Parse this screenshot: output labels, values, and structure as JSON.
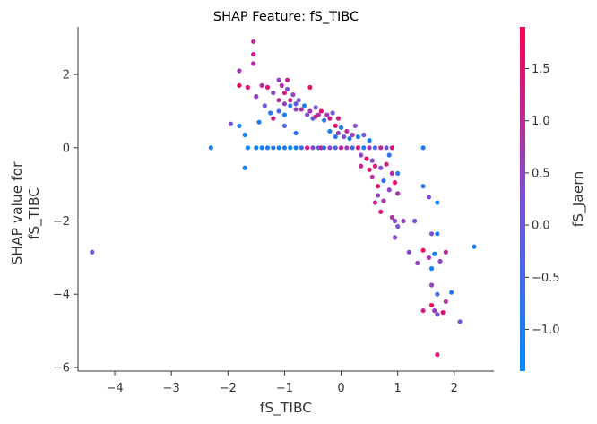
{
  "chart_data": {
    "type": "scatter",
    "title": "SHAP Feature: fS_TIBC",
    "xlabel": "fS_TIBC",
    "ylabel_lines": [
      "SHAP value for",
      "fS_TIBC"
    ],
    "xlim": [
      -4.65,
      2.7
    ],
    "ylim": [
      -6.1,
      3.3
    ],
    "xticks": [
      -4,
      -3,
      -2,
      -1,
      0,
      1,
      2
    ],
    "yticks": [
      -6,
      -4,
      -2,
      0,
      2
    ],
    "colorbar": {
      "label": "fS_Jaern",
      "range": [
        -1.4,
        1.9
      ],
      "ticks": [
        -1.0,
        -0.5,
        0.0,
        0.5,
        1.0,
        1.5
      ],
      "tick_labels": [
        "−1.0",
        "−0.5",
        "0.0",
        "0.5",
        "1.0",
        "1.5"
      ],
      "colors": [
        "#008bfb",
        "#7c4fd6",
        "#ff0052"
      ]
    },
    "points": [
      {
        "x": -4.4,
        "y": -2.85,
        "c": 0.1
      },
      {
        "x": -2.3,
        "y": 0.0,
        "c": -1.1
      },
      {
        "x": -1.95,
        "y": 0.65,
        "c": 0.2
      },
      {
        "x": -1.8,
        "y": 2.1,
        "c": 0.7
      },
      {
        "x": -1.8,
        "y": 1.7,
        "c": 1.6
      },
      {
        "x": -1.8,
        "y": 0.6,
        "c": -1.2
      },
      {
        "x": -1.7,
        "y": 0.35,
        "c": -1.3
      },
      {
        "x": -1.7,
        "y": -0.55,
        "c": -1.3
      },
      {
        "x": -1.65,
        "y": 1.65,
        "c": 1.5
      },
      {
        "x": -1.65,
        "y": 0.0,
        "c": -1.2
      },
      {
        "x": -1.55,
        "y": 2.9,
        "c": 1.0
      },
      {
        "x": -1.55,
        "y": 2.55,
        "c": 1.2
      },
      {
        "x": -1.55,
        "y": 2.3,
        "c": 0.8
      },
      {
        "x": -1.5,
        "y": 1.4,
        "c": 0.6
      },
      {
        "x": -1.5,
        "y": 0.0,
        "c": -1.1
      },
      {
        "x": -1.45,
        "y": 0.7,
        "c": -1.1
      },
      {
        "x": -1.4,
        "y": 1.7,
        "c": 0.9
      },
      {
        "x": -1.4,
        "y": 0.0,
        "c": -1.2
      },
      {
        "x": -1.35,
        "y": 1.15,
        "c": 0.0
      },
      {
        "x": -1.3,
        "y": 1.65,
        "c": 1.6
      },
      {
        "x": -1.3,
        "y": 0.0,
        "c": -0.9
      },
      {
        "x": -1.25,
        "y": 0.95,
        "c": -0.9
      },
      {
        "x": -1.2,
        "y": 1.5,
        "c": 0.4
      },
      {
        "x": -1.2,
        "y": 0.8,
        "c": 1.3
      },
      {
        "x": -1.2,
        "y": 0.0,
        "c": -0.8
      },
      {
        "x": -1.1,
        "y": 1.85,
        "c": 0.5
      },
      {
        "x": -1.1,
        "y": 1.3,
        "c": 1.1
      },
      {
        "x": -1.1,
        "y": 1.0,
        "c": -0.5
      },
      {
        "x": -1.1,
        "y": 0.0,
        "c": -1.2
      },
      {
        "x": -1.05,
        "y": 1.7,
        "c": 0.9
      },
      {
        "x": -1.0,
        "y": 1.5,
        "c": 1.3
      },
      {
        "x": -1.0,
        "y": 1.2,
        "c": 0.6
      },
      {
        "x": -1.0,
        "y": 0.9,
        "c": -1.2
      },
      {
        "x": -1.0,
        "y": 0.6,
        "c": -0.4
      },
      {
        "x": -1.0,
        "y": 0.0,
        "c": -1.0
      },
      {
        "x": -0.95,
        "y": 1.85,
        "c": 1.1
      },
      {
        "x": -0.95,
        "y": 1.6,
        "c": 0.3
      },
      {
        "x": -0.9,
        "y": 1.3,
        "c": 1.4
      },
      {
        "x": -0.9,
        "y": 1.15,
        "c": -1.0
      },
      {
        "x": -0.9,
        "y": 0.0,
        "c": -1.3
      },
      {
        "x": -0.85,
        "y": 1.45,
        "c": 0.5
      },
      {
        "x": -0.8,
        "y": 1.2,
        "c": 0.0
      },
      {
        "x": -0.8,
        "y": 1.05,
        "c": 0.6
      },
      {
        "x": -0.8,
        "y": 0.4,
        "c": -0.8
      },
      {
        "x": -0.8,
        "y": 0.0,
        "c": -1.1
      },
      {
        "x": -0.75,
        "y": 1.3,
        "c": 0.2
      },
      {
        "x": -0.7,
        "y": 1.05,
        "c": 0.9
      },
      {
        "x": -0.7,
        "y": 0.0,
        "c": -0.6
      },
      {
        "x": -0.65,
        "y": 1.15,
        "c": -1.0
      },
      {
        "x": -0.6,
        "y": 0.9,
        "c": 0.4
      },
      {
        "x": -0.6,
        "y": 0.0,
        "c": 1.4
      },
      {
        "x": -0.55,
        "y": 1.65,
        "c": 1.6
      },
      {
        "x": -0.55,
        "y": 1.0,
        "c": 0.8
      },
      {
        "x": -0.5,
        "y": 0.8,
        "c": -0.4
      },
      {
        "x": -0.5,
        "y": 0.0,
        "c": 0.3
      },
      {
        "x": -0.45,
        "y": 1.1,
        "c": 0.1
      },
      {
        "x": -0.45,
        "y": 0.85,
        "c": 1.2
      },
      {
        "x": -0.4,
        "y": 0.9,
        "c": 0.9
      },
      {
        "x": -0.4,
        "y": 0.0,
        "c": -0.2
      },
      {
        "x": -0.35,
        "y": 1.0,
        "c": 1.5
      },
      {
        "x": -0.35,
        "y": 0.0,
        "c": 1.1
      },
      {
        "x": -0.3,
        "y": 0.75,
        "c": -0.9
      },
      {
        "x": -0.3,
        "y": 0.0,
        "c": -0.7
      },
      {
        "x": -0.25,
        "y": 0.9,
        "c": 0.6
      },
      {
        "x": -0.2,
        "y": 0.8,
        "c": 1.2
      },
      {
        "x": -0.2,
        "y": 0.45,
        "c": -1.1
      },
      {
        "x": -0.2,
        "y": 0.0,
        "c": 0.5
      },
      {
        "x": -0.15,
        "y": 0.95,
        "c": 0.0
      },
      {
        "x": -0.1,
        "y": 0.6,
        "c": 1.6
      },
      {
        "x": -0.1,
        "y": 0.3,
        "c": -0.9
      },
      {
        "x": -0.1,
        "y": 0.0,
        "c": -0.4
      },
      {
        "x": -0.05,
        "y": 0.8,
        "c": 1.3
      },
      {
        "x": -0.05,
        "y": 0.4,
        "c": 0.4
      },
      {
        "x": 0.0,
        "y": 0.55,
        "c": -0.8
      },
      {
        "x": 0.0,
        "y": 0.0,
        "c": 1.3
      },
      {
        "x": 0.05,
        "y": 0.3,
        "c": 0.2
      },
      {
        "x": 0.1,
        "y": 0.45,
        "c": 1.0
      },
      {
        "x": 0.1,
        "y": 0.0,
        "c": 0.6
      },
      {
        "x": 0.15,
        "y": 0.25,
        "c": -1.0
      },
      {
        "x": 0.2,
        "y": 0.35,
        "c": 0.7
      },
      {
        "x": 0.2,
        "y": 0.0,
        "c": -0.3
      },
      {
        "x": 0.25,
        "y": 0.6,
        "c": 0.3
      },
      {
        "x": 0.3,
        "y": 0.3,
        "c": -1.1
      },
      {
        "x": 0.3,
        "y": 0.0,
        "c": 1.4
      },
      {
        "x": 0.35,
        "y": -0.2,
        "c": 0.5
      },
      {
        "x": 0.35,
        "y": -0.5,
        "c": 1.2
      },
      {
        "x": 0.4,
        "y": 0.35,
        "c": 0.0
      },
      {
        "x": 0.4,
        "y": 0.0,
        "c": -0.9
      },
      {
        "x": 0.45,
        "y": -0.3,
        "c": 1.6
      },
      {
        "x": 0.5,
        "y": 0.2,
        "c": -1.1
      },
      {
        "x": 0.5,
        "y": 0.0,
        "c": 0.8
      },
      {
        "x": 0.5,
        "y": -0.6,
        "c": 1.5
      },
      {
        "x": 0.55,
        "y": -0.35,
        "c": 0.4
      },
      {
        "x": 0.55,
        "y": -0.8,
        "c": 1.0
      },
      {
        "x": 0.6,
        "y": 0.0,
        "c": -0.6
      },
      {
        "x": 0.6,
        "y": -0.5,
        "c": 1.4
      },
      {
        "x": 0.6,
        "y": -1.5,
        "c": 1.3
      },
      {
        "x": 0.65,
        "y": -1.3,
        "c": 0.6
      },
      {
        "x": 0.65,
        "y": -1.05,
        "c": 1.6
      },
      {
        "x": 0.7,
        "y": 0.0,
        "c": 1.2
      },
      {
        "x": 0.7,
        "y": -0.55,
        "c": 0.2
      },
      {
        "x": 0.7,
        "y": -1.75,
        "c": 1.5
      },
      {
        "x": 0.75,
        "y": -0.9,
        "c": -0.9
      },
      {
        "x": 0.75,
        "y": -1.45,
        "c": 0.7
      },
      {
        "x": 0.8,
        "y": 0.0,
        "c": 0.1
      },
      {
        "x": 0.8,
        "y": -0.45,
        "c": 1.3
      },
      {
        "x": 0.85,
        "y": -0.2,
        "c": -0.8
      },
      {
        "x": 0.85,
        "y": -1.15,
        "c": 0.5
      },
      {
        "x": 0.9,
        "y": 0.0,
        "c": 1.4
      },
      {
        "x": 0.9,
        "y": -0.7,
        "c": 1.1
      },
      {
        "x": 0.9,
        "y": -1.9,
        "c": 0.9
      },
      {
        "x": 0.95,
        "y": -0.95,
        "c": 1.6
      },
      {
        "x": 0.95,
        "y": -2.0,
        "c": 0.3
      },
      {
        "x": 0.95,
        "y": -2.45,
        "c": 0.4
      },
      {
        "x": 1.0,
        "y": -0.7,
        "c": -1.0
      },
      {
        "x": 1.0,
        "y": -1.25,
        "c": 0.8
      },
      {
        "x": 1.0,
        "y": -2.15,
        "c": 0.2
      },
      {
        "x": 1.1,
        "y": -2.0,
        "c": 0.6
      },
      {
        "x": 1.2,
        "y": -2.85,
        "c": 0.3
      },
      {
        "x": 1.3,
        "y": -2.0,
        "c": 0.1
      },
      {
        "x": 1.35,
        "y": -3.15,
        "c": 0.5
      },
      {
        "x": 1.45,
        "y": 0.0,
        "c": -1.0
      },
      {
        "x": 1.45,
        "y": -1.05,
        "c": -0.9
      },
      {
        "x": 1.45,
        "y": -2.8,
        "c": 1.6
      },
      {
        "x": 1.45,
        "y": -4.45,
        "c": 1.2
      },
      {
        "x": 1.55,
        "y": -1.35,
        "c": 0.3
      },
      {
        "x": 1.55,
        "y": -3.0,
        "c": 0.8
      },
      {
        "x": 1.6,
        "y": -2.35,
        "c": 0.2
      },
      {
        "x": 1.6,
        "y": -3.3,
        "c": -1.2
      },
      {
        "x": 1.6,
        "y": -3.75,
        "c": 0.5
      },
      {
        "x": 1.6,
        "y": -4.3,
        "c": 1.7
      },
      {
        "x": 1.65,
        "y": -2.9,
        "c": -1.3
      },
      {
        "x": 1.65,
        "y": -4.45,
        "c": 0.7
      },
      {
        "x": 1.7,
        "y": -1.5,
        "c": -1.2
      },
      {
        "x": 1.7,
        "y": -2.35,
        "c": -1.1
      },
      {
        "x": 1.7,
        "y": -4.0,
        "c": -0.5
      },
      {
        "x": 1.7,
        "y": -4.55,
        "c": 0.3
      },
      {
        "x": 1.7,
        "y": -5.65,
        "c": 1.4
      },
      {
        "x": 1.75,
        "y": -3.1,
        "c": 0.4
      },
      {
        "x": 1.8,
        "y": -4.5,
        "c": 1.5
      },
      {
        "x": 1.85,
        "y": -2.85,
        "c": 1.1
      },
      {
        "x": 1.85,
        "y": -4.2,
        "c": 0.9
      },
      {
        "x": 1.95,
        "y": -3.95,
        "c": -1.0
      },
      {
        "x": 2.1,
        "y": -4.75,
        "c": 0.1
      },
      {
        "x": 2.35,
        "y": -2.7,
        "c": -1.0
      }
    ]
  }
}
